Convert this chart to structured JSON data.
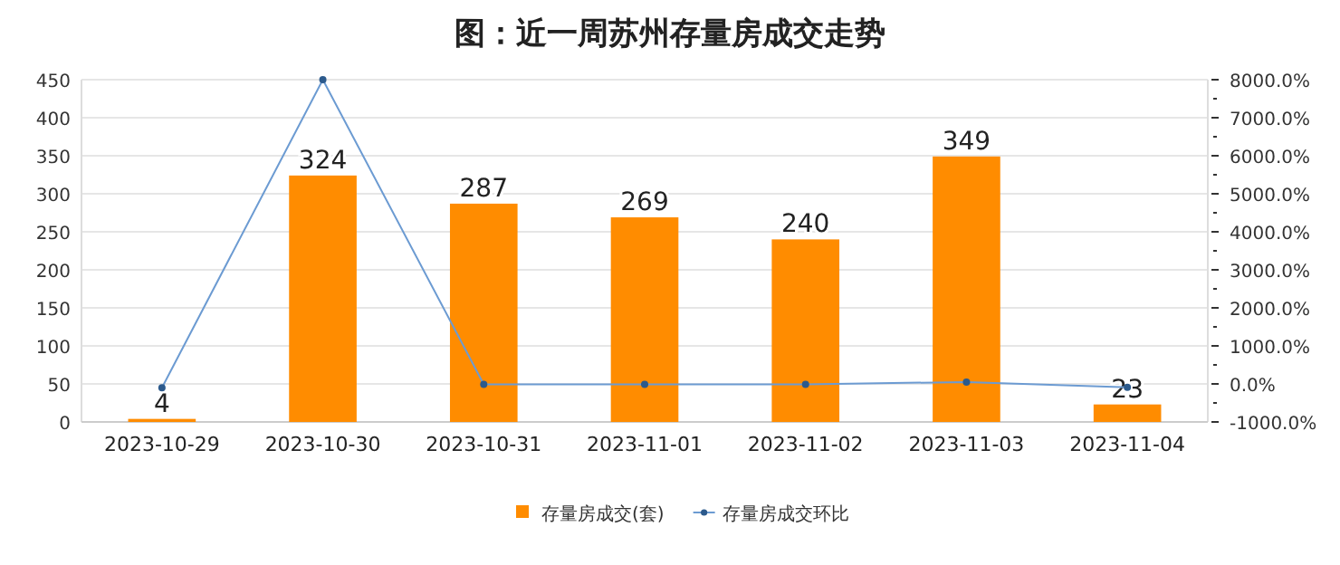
{
  "chart_data": {
    "type": "bar",
    "title": "图：近一周苏州存量房成交走势",
    "categories": [
      "2023-10-29",
      "2023-10-30",
      "2023-10-31",
      "2023-11-01",
      "2023-11-02",
      "2023-11-03",
      "2023-11-04"
    ],
    "series": [
      {
        "name": "存量房成交(套)",
        "color": "#ff8c00",
        "values": [
          4,
          324,
          287,
          269,
          240,
          349,
          23
        ],
        "value_labels": [
          "4",
          "324",
          "287",
          "269",
          "240",
          "349",
          "23"
        ]
      },
      {
        "name": "存量房成交环比",
        "type": "line",
        "axis": "y2",
        "color": "#6c9bd2",
        "marker": "circle",
        "values": [
          -100,
          8000,
          -10,
          -10,
          -10,
          50,
          -90
        ]
      }
    ],
    "ylim": [
      0,
      450
    ],
    "yticks": [
      0,
      50,
      100,
      150,
      200,
      250,
      300,
      350,
      400,
      450
    ],
    "y2lim": [
      -1000,
      8000
    ],
    "y2ticks": [
      {
        "value": -1000,
        "label": "-1000.0%"
      },
      {
        "value": 0,
        "label": "0.0%"
      },
      {
        "value": 1000,
        "label": "1000.0%"
      },
      {
        "value": 2000,
        "label": "2000.0%"
      },
      {
        "value": 3000,
        "label": "3000.0%"
      },
      {
        "value": 4000,
        "label": "4000.0%"
      },
      {
        "value": 5000,
        "label": "5000.0%"
      },
      {
        "value": 6000,
        "label": "6000.0%"
      },
      {
        "value": 7000,
        "label": "7000.0%"
      },
      {
        "value": 8000,
        "label": "8000.0%"
      }
    ],
    "grid": "y",
    "legend": "bottom"
  }
}
